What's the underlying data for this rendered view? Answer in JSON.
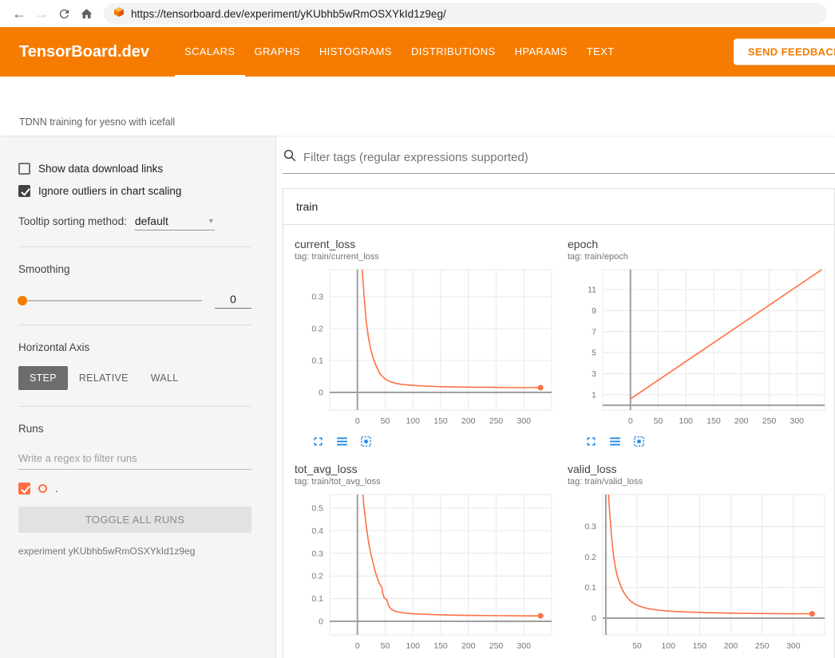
{
  "browser": {
    "url": "https://tensorboard.dev/experiment/yKUbhb5wRmOSXYkId1z9eg/"
  },
  "header": {
    "logo": "TensorBoard.dev",
    "tabs": [
      {
        "label": "SCALARS",
        "active": true
      },
      {
        "label": "GRAPHS",
        "active": false
      },
      {
        "label": "HISTOGRAMS",
        "active": false
      },
      {
        "label": "DISTRIBUTIONS",
        "active": false
      },
      {
        "label": "HPARAMS",
        "active": false
      },
      {
        "label": "TEXT",
        "active": false
      }
    ],
    "feedback_button": "SEND FEEDBACK"
  },
  "experiment": {
    "description": "TDNN training for yesno with icefall"
  },
  "sidebar": {
    "show_download": {
      "label": "Show data download links",
      "checked": false
    },
    "ignore_outliers": {
      "label": "Ignore outliers in chart scaling",
      "checked": true
    },
    "tooltip_sorting": {
      "label": "Tooltip sorting method:",
      "value": "default"
    },
    "smoothing": {
      "label": "Smoothing",
      "value": "0"
    },
    "horizontal_axis": {
      "label": "Horizontal Axis",
      "options": [
        "STEP",
        "RELATIVE",
        "WALL"
      ],
      "selected": "STEP"
    },
    "runs": {
      "label": "Runs",
      "filter_placeholder": "Write a regex to filter runs",
      "run": {
        "name": ".",
        "checked": true,
        "color": "#ff7043"
      },
      "toggle_button": "TOGGLE ALL RUNS",
      "experiment_note": "experiment yKUbhb5wRmOSXYkId1z9eg"
    }
  },
  "main": {
    "filter_placeholder": "Filter tags (regular expressions supported)",
    "group_label": "train",
    "chart_toolbar_icons": [
      "expand-chart",
      "toggle-y-axis",
      "fit-domain"
    ]
  },
  "colors": {
    "header_orange": "#f57c00",
    "run_orange": "#ff7043",
    "icon_blue": "#1e88e5"
  },
  "chart_data": [
    {
      "type": "line",
      "title": "current_loss",
      "tag": "tag: train/current_loss",
      "xlim": [
        -50,
        350
      ],
      "ylim": [
        -0.055,
        0.385
      ],
      "xticks": [
        0,
        50,
        100,
        150,
        200,
        250,
        300
      ],
      "yticks": [
        0,
        0.1,
        0.2,
        0.3
      ],
      "end_dot": true,
      "series": [
        {
          "name": ".",
          "color": "#ff7043",
          "points": [
            [
              0,
              0.8
            ],
            [
              4,
              0.55
            ],
            [
              8,
              0.4
            ],
            [
              12,
              0.3
            ],
            [
              16,
              0.22
            ],
            [
              20,
              0.17
            ],
            [
              24,
              0.135
            ],
            [
              28,
              0.11
            ],
            [
              32,
              0.09
            ],
            [
              36,
              0.075
            ],
            [
              40,
              0.06
            ],
            [
              45,
              0.05
            ],
            [
              50,
              0.042
            ],
            [
              60,
              0.033
            ],
            [
              70,
              0.028
            ],
            [
              80,
              0.025
            ],
            [
              100,
              0.022
            ],
            [
              120,
              0.02
            ],
            [
              150,
              0.018
            ],
            [
              180,
              0.017
            ],
            [
              210,
              0.016
            ],
            [
              240,
              0.016
            ],
            [
              270,
              0.015
            ],
            [
              300,
              0.015
            ],
            [
              330,
              0.015
            ]
          ]
        }
      ]
    },
    {
      "type": "line",
      "title": "epoch",
      "tag": "tag: train/epoch",
      "xlim": [
        -50,
        350
      ],
      "ylim": [
        -0.45,
        12.9
      ],
      "xticks": [
        0,
        50,
        100,
        150,
        200,
        250,
        300
      ],
      "yticks": [
        1,
        3,
        5,
        7,
        9,
        11
      ],
      "end_dot": false,
      "series": [
        {
          "name": ".",
          "color": "#ff7043",
          "points": [
            [
              0,
              0.6
            ],
            [
              345,
              12.9
            ]
          ]
        }
      ]
    },
    {
      "type": "line",
      "title": "tot_avg_loss",
      "tag": "tag: train/tot_avg_loss",
      "xlim": [
        -50,
        350
      ],
      "ylim": [
        -0.06,
        0.56
      ],
      "xticks": [
        0,
        50,
        100,
        150,
        200,
        250,
        300
      ],
      "yticks": [
        0,
        0.1,
        0.2,
        0.3,
        0.4,
        0.5
      ],
      "end_dot": true,
      "series": [
        {
          "name": ".",
          "color": "#ff7043",
          "points": [
            [
              0,
              1.0
            ],
            [
              4,
              0.8
            ],
            [
              8,
              0.62
            ],
            [
              12,
              0.5
            ],
            [
              16,
              0.42
            ],
            [
              20,
              0.35
            ],
            [
              24,
              0.3
            ],
            [
              28,
              0.26
            ],
            [
              32,
              0.22
            ],
            [
              36,
              0.19
            ],
            [
              40,
              0.165
            ],
            [
              44,
              0.15
            ],
            [
              46,
              0.12
            ],
            [
              48,
              0.105
            ],
            [
              50,
              0.1
            ],
            [
              53,
              0.095
            ],
            [
              56,
              0.07
            ],
            [
              60,
              0.055
            ],
            [
              65,
              0.048
            ],
            [
              70,
              0.043
            ],
            [
              80,
              0.038
            ],
            [
              100,
              0.033
            ],
            [
              130,
              0.03
            ],
            [
              160,
              0.028
            ],
            [
              200,
              0.026
            ],
            [
              250,
              0.025
            ],
            [
              300,
              0.024
            ],
            [
              330,
              0.024
            ]
          ]
        }
      ]
    },
    {
      "type": "line",
      "title": "valid_loss",
      "tag": "tag: train/valid_loss",
      "xlim": [
        -5,
        350
      ],
      "ylim": [
        -0.055,
        0.405
      ],
      "xticks": [
        50,
        100,
        150,
        200,
        250,
        300
      ],
      "yticks": [
        0,
        0.1,
        0.2,
        0.3
      ],
      "end_dot": true,
      "series": [
        {
          "name": ".",
          "color": "#ff7043",
          "points": [
            [
              0,
              0.6
            ],
            [
              3,
              0.45
            ],
            [
              6,
              0.35
            ],
            [
              9,
              0.27
            ],
            [
              12,
              0.21
            ],
            [
              15,
              0.17
            ],
            [
              18,
              0.14
            ],
            [
              22,
              0.115
            ],
            [
              26,
              0.095
            ],
            [
              30,
              0.08
            ],
            [
              35,
              0.065
            ],
            [
              40,
              0.055
            ],
            [
              45,
              0.048
            ],
            [
              50,
              0.042
            ],
            [
              60,
              0.035
            ],
            [
              70,
              0.03
            ],
            [
              80,
              0.027
            ],
            [
              100,
              0.023
            ],
            [
              130,
              0.02
            ],
            [
              160,
              0.018
            ],
            [
              200,
              0.016
            ],
            [
              250,
              0.015
            ],
            [
              300,
              0.014
            ],
            [
              330,
              0.014
            ]
          ]
        }
      ]
    }
  ]
}
